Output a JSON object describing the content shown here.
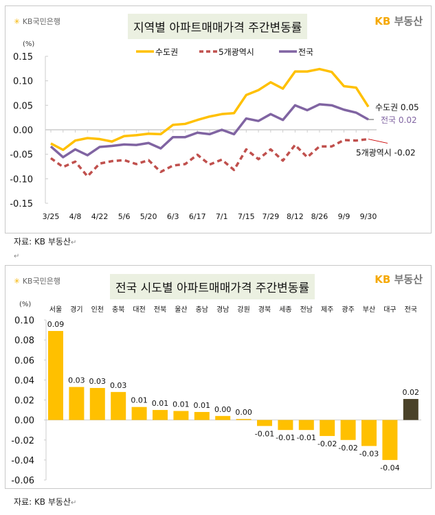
{
  "brand": {
    "bank": "KB국민은행",
    "site_kb": "KB",
    "site_name": "부동산"
  },
  "source_note": "자료: KB 부동산",
  "colors": {
    "capital": "#ffc000",
    "metro5": "#c0504d",
    "national": "#8064a2",
    "bar_positive": "#ffc000",
    "bar_national": "#4a4229"
  },
  "chart_data": [
    {
      "type": "line",
      "title": "지역별 아파트매매가격 주간변동률",
      "ylabel": "(%)",
      "ylim": [
        -0.15,
        0.15
      ],
      "yticks": [
        "0.15",
        "0.10",
        "0.05",
        "0.00",
        "-0.05",
        "-0.10",
        "-0.15"
      ],
      "legend_position": "top",
      "x": [
        "3/25",
        "4/1",
        "4/8",
        "4/15",
        "4/22",
        "4/29",
        "5/6",
        "5/13",
        "5/20",
        "5/27",
        "6/3",
        "6/10",
        "6/17",
        "6/24",
        "7/1",
        "7/8",
        "7/15",
        "7/22",
        "7/29",
        "8/5",
        "8/12",
        "8/19",
        "8/26",
        "9/2",
        "9/9",
        "9/23",
        "9/30"
      ],
      "xtick_labels": [
        "3/25",
        "4/8",
        "4/22",
        "5/6",
        "5/20",
        "6/3",
        "6/17",
        "7/1",
        "7/15",
        "7/29",
        "8/12",
        "8/26",
        "9/9",
        "9/30"
      ],
      "series": [
        {
          "name": "수도권",
          "style": "solid",
          "values": [
            -0.028,
            -0.041,
            -0.022,
            -0.017,
            -0.019,
            -0.024,
            -0.013,
            -0.011,
            -0.008,
            -0.009,
            0.01,
            0.012,
            0.02,
            0.027,
            0.032,
            0.034,
            0.071,
            0.081,
            0.097,
            0.084,
            0.119,
            0.119,
            0.124,
            0.118,
            0.089,
            0.086,
            0.047
          ],
          "end_label": "수도권 0.05"
        },
        {
          "name": "5개광역시",
          "style": "dashed",
          "values": [
            -0.058,
            -0.076,
            -0.065,
            -0.095,
            -0.069,
            -0.064,
            -0.062,
            -0.07,
            -0.062,
            -0.086,
            -0.073,
            -0.07,
            -0.051,
            -0.071,
            -0.061,
            -0.082,
            -0.04,
            -0.06,
            -0.04,
            -0.063,
            -0.031,
            -0.056,
            -0.034,
            -0.034,
            -0.021,
            -0.022,
            -0.019
          ],
          "end_label": "5개광역시 -0.02"
        },
        {
          "name": "전국",
          "style": "solid",
          "values": [
            -0.034,
            -0.056,
            -0.04,
            -0.052,
            -0.035,
            -0.033,
            -0.03,
            -0.031,
            -0.027,
            -0.038,
            -0.015,
            -0.015,
            -0.006,
            -0.009,
            0.0,
            -0.009,
            0.023,
            0.018,
            0.032,
            0.02,
            0.05,
            0.04,
            0.052,
            0.05,
            0.041,
            0.035,
            0.021
          ],
          "end_label": "전국 0.02"
        }
      ]
    },
    {
      "type": "bar",
      "title": "전국 시도별 아파트매매가격 주간변동률",
      "ylabel": "(%)",
      "ylim": [
        -0.06,
        0.1
      ],
      "yticks": [
        "0.10",
        "0.08",
        "0.06",
        "0.04",
        "0.02",
        "0.00",
        "-0.02",
        "-0.04",
        "-0.06"
      ],
      "categories": [
        "서울",
        "경기",
        "인천",
        "충북",
        "대전",
        "전북",
        "울산",
        "충남",
        "경남",
        "강원",
        "경북",
        "세종",
        "전남",
        "제주",
        "광주",
        "부산",
        "대구",
        "전국"
      ],
      "values": [
        0.089,
        0.033,
        0.032,
        0.028,
        0.013,
        0.01,
        0.009,
        0.008,
        0.004,
        0.001,
        -0.006,
        -0.01,
        -0.01,
        -0.016,
        -0.02,
        -0.026,
        -0.04,
        0.021
      ],
      "data_labels": [
        "0.09",
        "0.03",
        "0.03",
        "0.03",
        "0.01",
        "0.01",
        "0.01",
        "0.01",
        "0.00",
        "0.00",
        "-0.01",
        "-0.01",
        "-0.01",
        "-0.02",
        "-0.02",
        "-0.03",
        "-0.04",
        "0.02"
      ]
    }
  ]
}
